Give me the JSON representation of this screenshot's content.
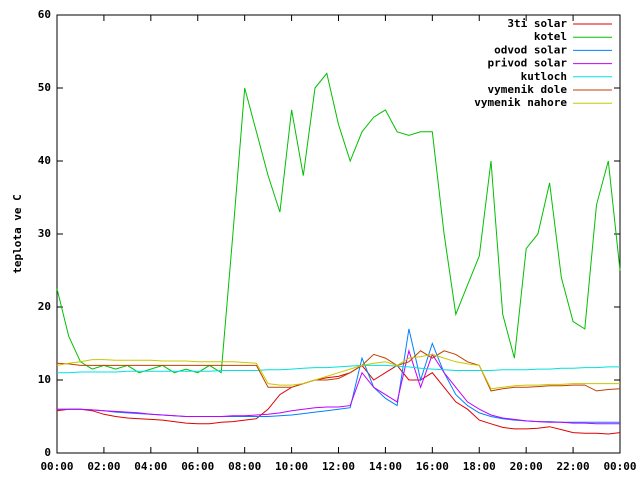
{
  "chart_data": {
    "type": "line",
    "ylabel": "teplota ve C",
    "x": [
      0,
      0.5,
      1,
      1.5,
      2,
      2.5,
      3,
      3.5,
      4,
      4.5,
      5,
      5.5,
      6,
      6.5,
      7,
      7.5,
      8,
      8.5,
      9,
      9.5,
      10,
      10.5,
      11,
      11.5,
      12,
      12.5,
      13,
      13.5,
      14,
      14.5,
      15,
      15.5,
      16,
      16.5,
      17,
      17.5,
      18,
      18.5,
      19,
      19.5,
      20,
      20.5,
      21,
      21.5,
      22,
      22.5,
      23,
      23.5,
      24
    ],
    "xlim": [
      0,
      24
    ],
    "xticks": [
      {
        "value": 0,
        "label": "00:00"
      },
      {
        "value": 2,
        "label": "02:00"
      },
      {
        "value": 4,
        "label": "04:00"
      },
      {
        "value": 6,
        "label": "06:00"
      },
      {
        "value": 8,
        "label": "08:00"
      },
      {
        "value": 10,
        "label": "10:00"
      },
      {
        "value": 12,
        "label": "12:00"
      },
      {
        "value": 14,
        "label": "14:00"
      },
      {
        "value": 16,
        "label": "16:00"
      },
      {
        "value": 18,
        "label": "18:00"
      },
      {
        "value": 20,
        "label": "20:00"
      },
      {
        "value": 22,
        "label": "22:00"
      },
      {
        "value": 24,
        "label": "00:00"
      }
    ],
    "ylim": [
      0,
      60
    ],
    "yticks": [
      0,
      10,
      20,
      30,
      40,
      50,
      60
    ],
    "grid": false,
    "legend": "top-right",
    "series": [
      {
        "name": "3ti solar",
        "color": "#e00000",
        "values": [
          5.8,
          6,
          6,
          5.8,
          5.3,
          5,
          4.8,
          4.7,
          4.6,
          4.5,
          4.3,
          4.1,
          4,
          4,
          4.2,
          4.3,
          4.5,
          4.7,
          6,
          8,
          9,
          9.5,
          10,
          10.3,
          10.5,
          11,
          12,
          10,
          11,
          12,
          10,
          10,
          11,
          9,
          7,
          6,
          4.5,
          4,
          3.5,
          3.3,
          3.3,
          3.4,
          3.6,
          3.2,
          2.8,
          2.7,
          2.7,
          2.6,
          2.8
        ]
      },
      {
        "name": "kotel",
        "color": "#00c000",
        "values": [
          22.5,
          16,
          12.5,
          11.5,
          12,
          11.5,
          12,
          11,
          11.5,
          12,
          11,
          11.5,
          11,
          12,
          11,
          30,
          50,
          44,
          38,
          33,
          47,
          38,
          50,
          52,
          45,
          40,
          44,
          46,
          47,
          44,
          43.5,
          44,
          44,
          30,
          19,
          23,
          27,
          40,
          19,
          13,
          28,
          30,
          37,
          24,
          18,
          17,
          34,
          40,
          25
        ]
      },
      {
        "name": "odvod solar",
        "color": "#0080ff",
        "values": [
          6,
          6,
          6,
          5.9,
          5.8,
          5.6,
          5.5,
          5.4,
          5.3,
          5.2,
          5.1,
          5,
          5,
          5,
          5,
          5,
          5,
          5,
          5,
          5.1,
          5.2,
          5.4,
          5.6,
          5.8,
          6,
          6.2,
          13,
          9,
          7.5,
          6.5,
          17,
          10,
          15,
          11,
          8,
          6.5,
          5.5,
          5,
          4.7,
          4.5,
          4.4,
          4.3,
          4.3,
          4.2,
          4.2,
          4.2,
          4.2,
          4.2,
          4.2
        ]
      },
      {
        "name": "privod solar",
        "color": "#c000ff",
        "values": [
          6,
          6,
          6,
          5.9,
          5.8,
          5.7,
          5.6,
          5.5,
          5.3,
          5.2,
          5.1,
          5,
          5,
          5,
          5,
          5.1,
          5.1,
          5.2,
          5.3,
          5.5,
          5.8,
          6,
          6.2,
          6.3,
          6.3,
          6.5,
          11,
          9,
          8,
          7,
          14,
          9,
          13.5,
          11,
          9,
          7,
          6,
          5.2,
          4.8,
          4.6,
          4.4,
          4.3,
          4.2,
          4.2,
          4.1,
          4.1,
          4,
          4,
          4
        ]
      },
      {
        "name": "kutloch",
        "color": "#00e0e0",
        "values": [
          11,
          11,
          11.1,
          11.1,
          11.1,
          11.1,
          11.2,
          11.2,
          11.2,
          11.2,
          11.2,
          11.2,
          11.2,
          11.2,
          11.3,
          11.3,
          11.3,
          11.3,
          11.4,
          11.4,
          11.5,
          11.6,
          11.7,
          11.7,
          11.8,
          11.9,
          12,
          12,
          12,
          11.9,
          11.8,
          11.6,
          11.5,
          11.4,
          11.3,
          11.3,
          11.3,
          11.3,
          11.4,
          11.4,
          11.4,
          11.5,
          11.5,
          11.6,
          11.6,
          11.7,
          11.7,
          11.8,
          11.8
        ]
      },
      {
        "name": "vymenik dole",
        "color": "#c04000",
        "values": [
          12.3,
          12.2,
          12,
          12,
          12,
          12,
          12,
          12,
          12,
          12,
          12,
          12,
          12,
          12,
          12,
          12,
          12,
          12,
          9,
          9,
          9,
          9.5,
          10,
          10,
          10.2,
          11,
          12,
          13.5,
          13,
          12,
          12.5,
          14,
          13,
          14,
          13.5,
          12.5,
          12,
          8.5,
          8.8,
          9,
          9,
          9.1,
          9.2,
          9.2,
          9.3,
          9.3,
          8.5,
          8.7,
          8.8
        ]
      },
      {
        "name": "vymenik nahore",
        "color": "#c8c800",
        "values": [
          12,
          12.3,
          12.5,
          12.8,
          12.8,
          12.7,
          12.7,
          12.7,
          12.7,
          12.6,
          12.6,
          12.6,
          12.5,
          12.5,
          12.5,
          12.5,
          12.4,
          12.3,
          9.5,
          9.3,
          9.3,
          9.5,
          10,
          10.5,
          11,
          11.5,
          12,
          12.3,
          12.5,
          12,
          13,
          13.2,
          13.5,
          13,
          12.5,
          12.2,
          12,
          8.8,
          9,
          9.2,
          9.3,
          9.3,
          9.4,
          9.4,
          9.5,
          9.5,
          9.5,
          9.5,
          9.5
        ]
      }
    ]
  }
}
